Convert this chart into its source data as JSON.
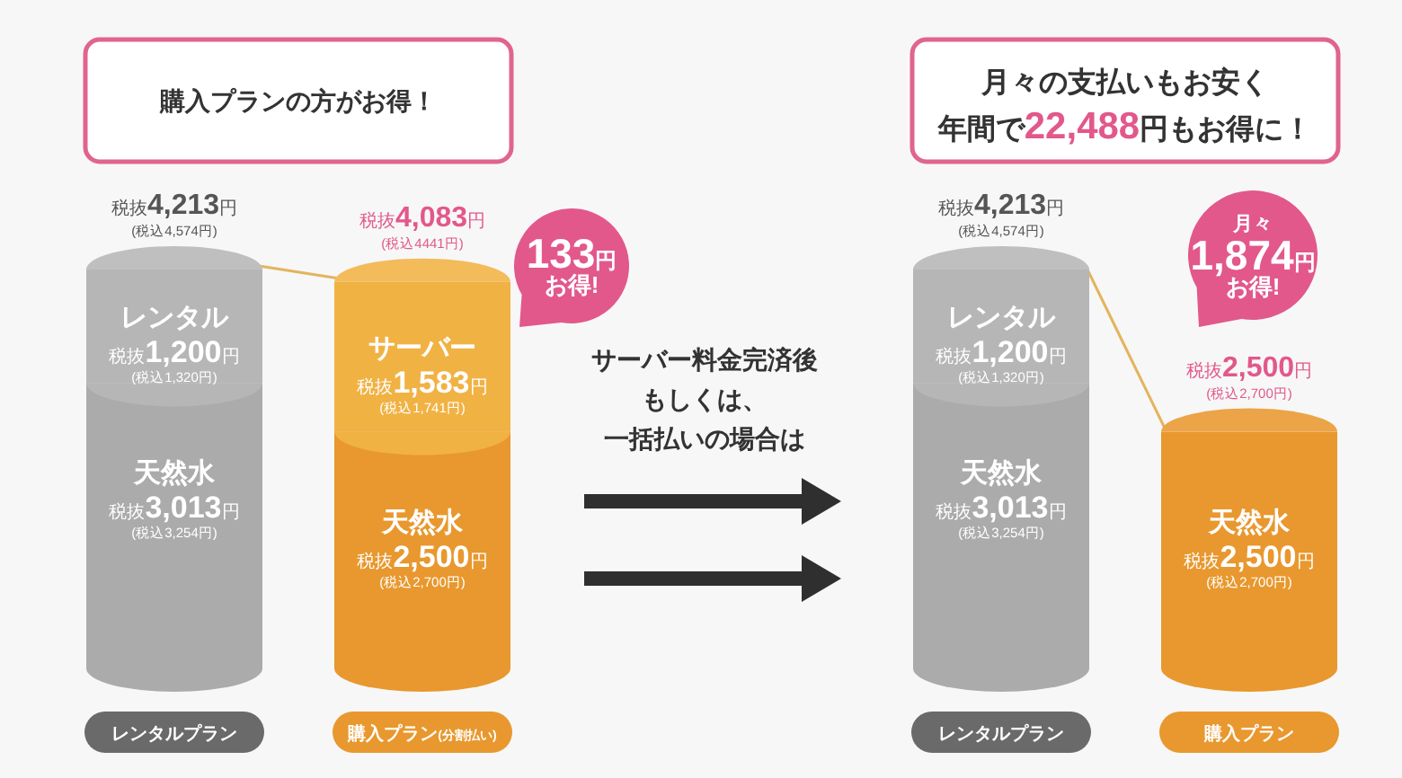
{
  "chart_data": [
    {
      "type": "bar",
      "title": "購入プランの方がお得！",
      "categories": [
        "レンタルプラン",
        "購入プラン(分割払い)"
      ],
      "stacked": true,
      "series": [
        {
          "name": "天然水",
          "colors": [
            "#ababab",
            "#e8982e"
          ],
          "values": [
            3013,
            2500
          ],
          "value_labels": [
            "税抜3,013円\n(税込3,254円)",
            "税抜2,500円\n(税込2,700円)"
          ]
        },
        {
          "name": "レンタル",
          "color": "#b6b6b6",
          "values": [
            1200,
            null
          ],
          "value_labels": [
            "税抜1,200円\n(税込1,320円)",
            null
          ]
        },
        {
          "name": "サーバー",
          "color": "#f1b244",
          "values": [
            null,
            1583
          ],
          "value_labels": [
            null,
            "税抜1,583円\n(税込1,741円)"
          ]
        }
      ],
      "totals": [
        "税抜4,213円\n(税込4,574円)",
        "税抜4,083円\n(税込4441円)"
      ],
      "annotations": [
        "133円お得!"
      ]
    },
    {
      "type": "other",
      "annotations": [
        "サーバー料金完済後もしくは、一括払いの場合は"
      ]
    },
    {
      "type": "bar",
      "title": "月々の支払いもお安く",
      "subtitle": "年間で22,488円もお得に！",
      "categories": [
        "レンタルプラン",
        "購入プラン"
      ],
      "stacked": true,
      "series": [
        {
          "name": "天然水",
          "colors": [
            "#ababab",
            "#e8982e"
          ],
          "values": [
            3013,
            2500
          ],
          "value_labels": [
            "税抜3,013円\n(税込3,254円)",
            "税抜2,500円\n(税込2,700円)"
          ]
        },
        {
          "name": "レンタル",
          "color": "#b6b6b6",
          "values": [
            1200,
            null
          ],
          "value_labels": [
            "税抜1,200円\n(税込1,320円)",
            null
          ]
        }
      ],
      "totals": [
        "税抜4,213円\n(税込4,574円)",
        "税抜2,500円\n(税込2,700円)"
      ],
      "annotations": [
        "月々1,874円お得!"
      ]
    }
  ]
}
